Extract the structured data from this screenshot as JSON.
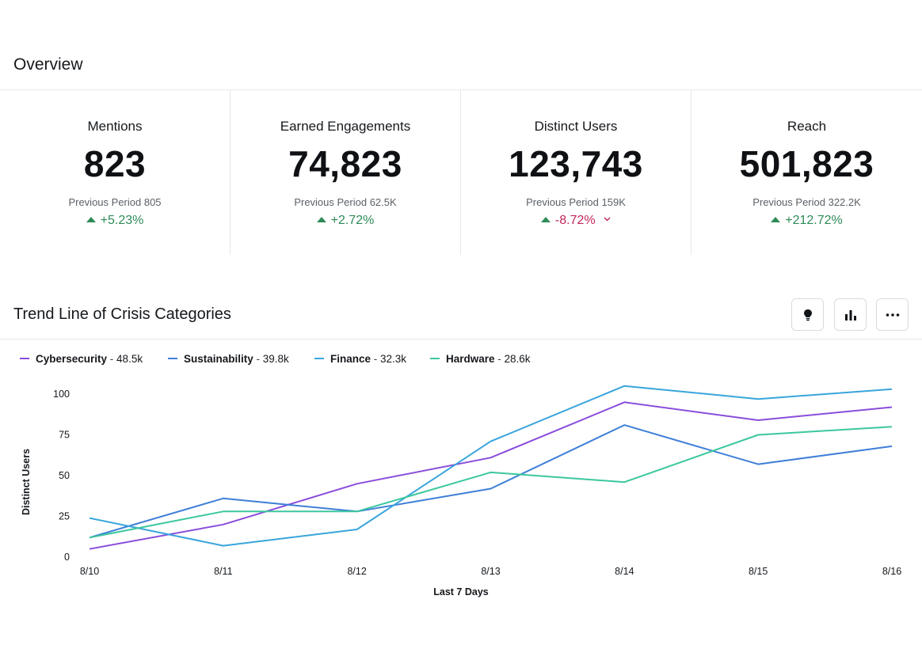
{
  "overview": {
    "title": "Overview"
  },
  "kpis": [
    {
      "label": "Mentions",
      "value": "823",
      "previous": "Previous Period 805",
      "change": "+5.23%",
      "direction": "up"
    },
    {
      "label": "Earned Engagements",
      "value": "74,823",
      "previous": "Previous Period 62.5K",
      "change": "+2.72%",
      "direction": "up"
    },
    {
      "label": "Distinct Users",
      "value": "123,743",
      "previous": "Previous Period 159K",
      "change": "-8.72%",
      "direction": "up-negative"
    },
    {
      "label": "Reach",
      "value": "501,823",
      "previous": "Previous Period 322.2K",
      "change": "+212.72%",
      "direction": "up"
    }
  ],
  "trend": {
    "title": "Trend Line of Crisis Categories",
    "actions": [
      {
        "icon": "lightbulb-icon"
      },
      {
        "icon": "bar-chart-icon"
      },
      {
        "icon": "more-icon"
      }
    ]
  },
  "colors": {
    "positive": "#2e8b57",
    "negative": "#c2255c"
  },
  "chart_data": {
    "type": "line",
    "title": "",
    "xlabel": "Last 7 Days",
    "ylabel": "Distinct Users",
    "categories": [
      "8/10",
      "8/11",
      "8/12",
      "8/13",
      "8/14",
      "8/15",
      "8/16"
    ],
    "y_ticks": [
      "0",
      "25",
      "50",
      "75",
      "100"
    ],
    "ylim": [
      0,
      100
    ],
    "grid": false,
    "legend_position": "top-left",
    "series": [
      {
        "name": "Cybersecurity",
        "total": "48.5k",
        "color": "#8a4ddb",
        "values": [
          5,
          20,
          45,
          61,
          95,
          84,
          92
        ]
      },
      {
        "name": "Sustainability",
        "total": "39.8k",
        "color": "#3f7fd8",
        "values": [
          12,
          36,
          28,
          42,
          81,
          57,
          68
        ]
      },
      {
        "name": "Finance",
        "total": "32.3k",
        "color": "#39a5dc",
        "values": [
          24,
          7,
          17,
          71,
          105,
          97,
          103
        ]
      },
      {
        "name": "Hardware",
        "total": "28.6k",
        "color": "#3cc79e",
        "values": [
          12,
          28,
          28,
          52,
          46,
          75,
          80
        ]
      }
    ]
  }
}
